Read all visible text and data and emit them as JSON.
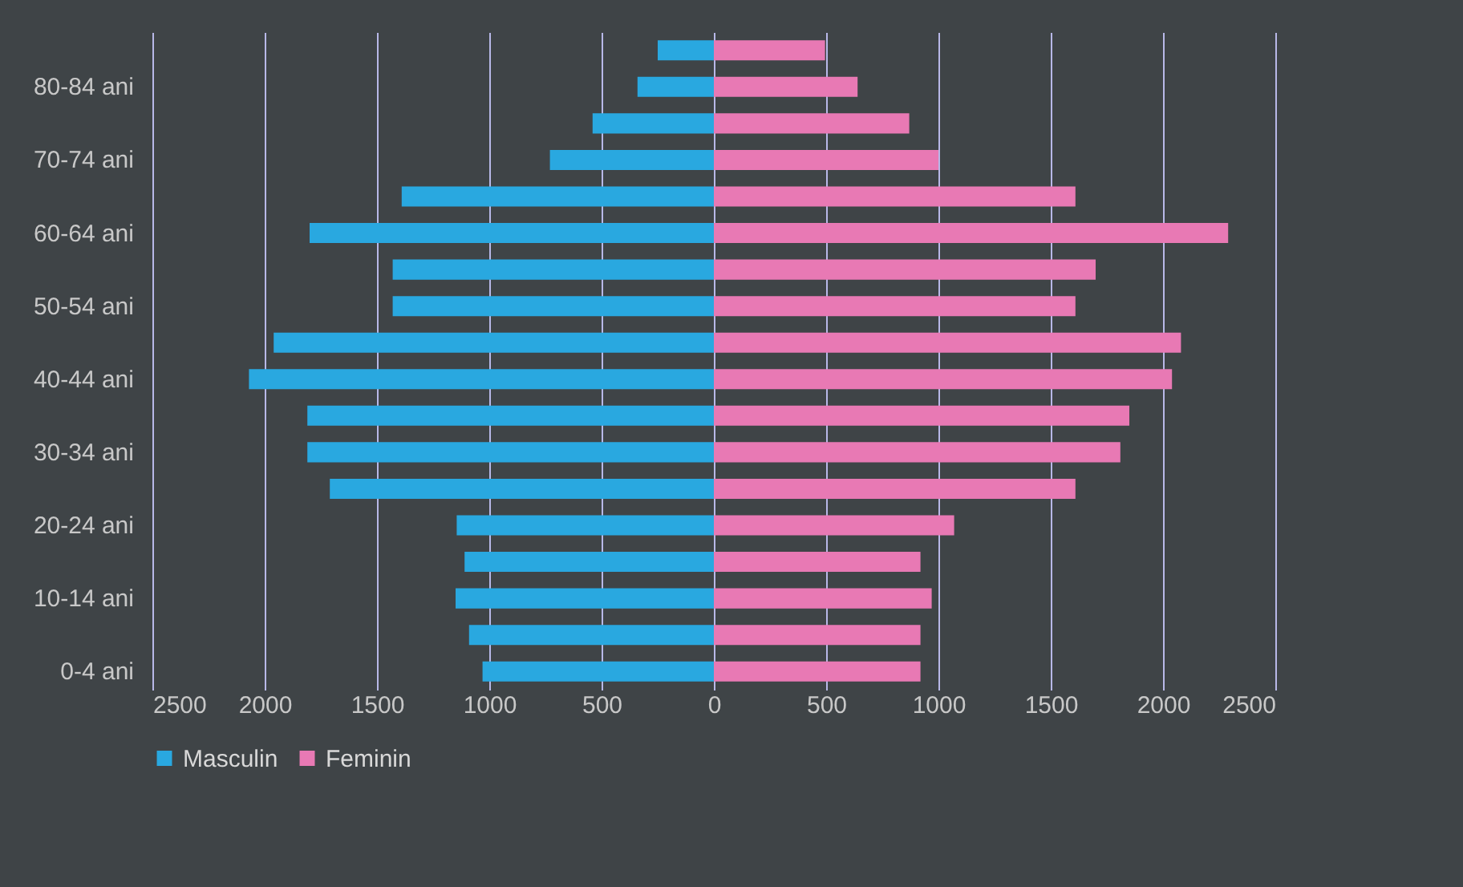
{
  "chart_data": {
    "type": "bar",
    "orientation": "horizontal",
    "categories": [
      null,
      "80-84 ani",
      null,
      "70-74 ani",
      null,
      "60-64 ani",
      null,
      "50-54 ani",
      null,
      "40-44 ani",
      null,
      "30-34 ani",
      null,
      "20-24 ani",
      null,
      "10-14 ani",
      null,
      "0-4 ani"
    ],
    "series": [
      {
        "name": "Masculin",
        "color": "#29a8e0",
        "values": [
          -250,
          -340,
          -540,
          -730,
          -1390,
          -1800,
          -1430,
          -1430,
          -1960,
          -2070,
          -1810,
          -1810,
          -1710,
          -1145,
          -1110,
          -1150,
          -1090,
          -1030
        ]
      },
      {
        "name": "Feminin",
        "color": "#e879b4",
        "values": [
          495,
          640,
          870,
          1000,
          1610,
          2290,
          1700,
          1610,
          2080,
          2040,
          1850,
          1810,
          1610,
          1070,
          920,
          970,
          920,
          920
        ]
      }
    ],
    "xlim": [
      -2500,
      2500
    ],
    "xticks": [
      {
        "value": -2500,
        "label": "2500"
      },
      {
        "value": -2000,
        "label": "2000"
      },
      {
        "value": -1500,
        "label": "1500"
      },
      {
        "value": -1000,
        "label": "1000"
      },
      {
        "value": -500,
        "label": "500"
      },
      0,
      500,
      1000,
      1500,
      2000,
      2500
    ],
    "stacked": true,
    "grid": "x",
    "legend": "bottom"
  }
}
